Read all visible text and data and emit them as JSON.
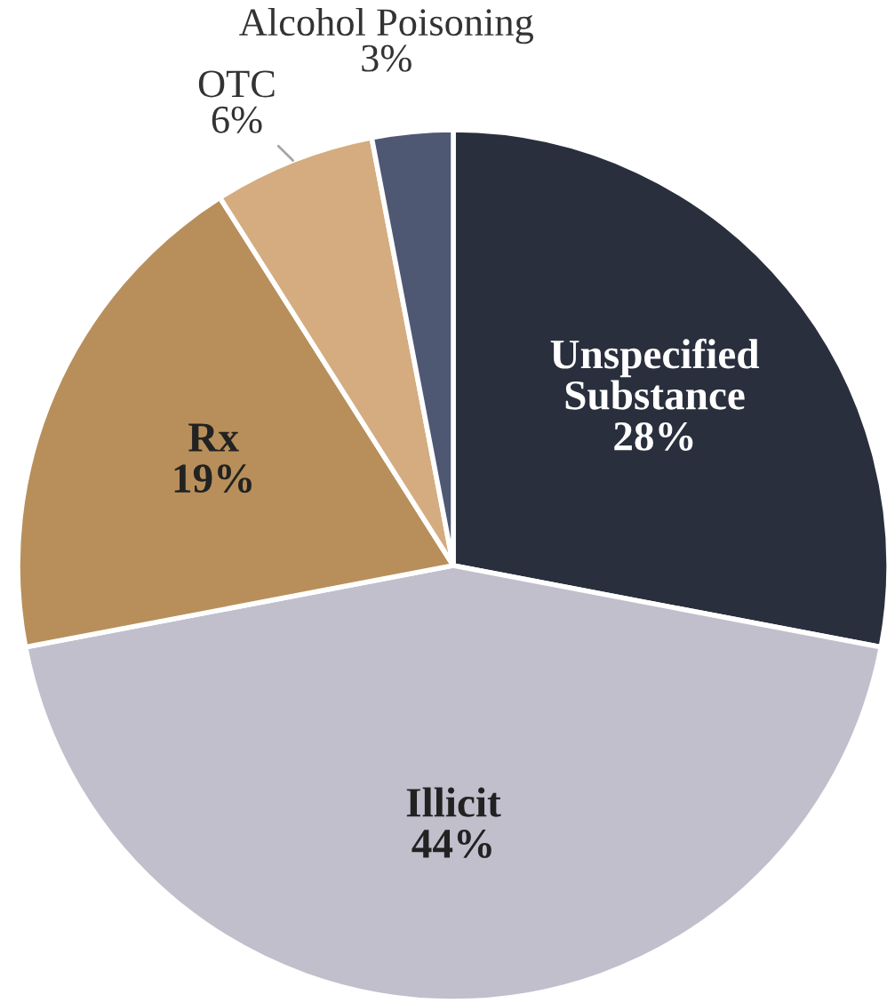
{
  "chart_data": {
    "type": "pie",
    "categories": [
      "Unspecified Substance",
      "Illicit",
      "Rx",
      "OTC",
      "Alcohol Poisoning"
    ],
    "values": [
      28,
      44,
      19,
      6,
      3
    ],
    "value_labels": [
      "28%",
      "44%",
      "19%",
      "6%",
      "3%"
    ],
    "colors": [
      "#2a2f3d",
      "#c1bfcc",
      "#b88f5a",
      "#d4ac80",
      "#4f5873"
    ]
  }
}
